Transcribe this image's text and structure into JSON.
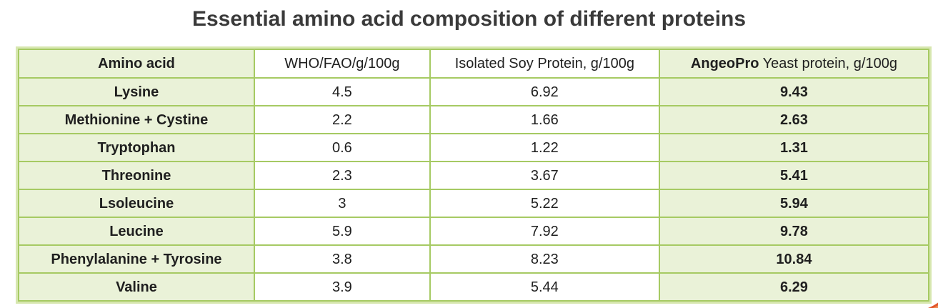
{
  "title": "Essential amino acid composition of different proteins",
  "table": {
    "headers": {
      "amino_acid": "Amino acid",
      "who_fao": "WHO/FAO/g/100g",
      "soy": "Isolated Soy Protein, g/100g",
      "angeopro_brand": "AngeoPro",
      "angeopro_rest": " Yeast protein, g/100g"
    },
    "rows": [
      {
        "cells": [
          "Lysine",
          "4.5",
          "6.92",
          "9.43"
        ]
      },
      {
        "cells": [
          "Methionine + Cystine",
          "2.2",
          "1.66",
          "2.63"
        ]
      },
      {
        "cells": [
          "Tryptophan",
          "0.6",
          "1.22",
          "1.31"
        ]
      },
      {
        "cells": [
          "Threonine",
          "2.3",
          "3.67",
          "5.41"
        ]
      },
      {
        "cells": [
          "Lsoleucine",
          "3",
          "5.22",
          "5.94"
        ]
      },
      {
        "cells": [
          "Leucine",
          "5.9",
          "7.92",
          "9.78"
        ]
      },
      {
        "cells": [
          "Phenylalanine + Tyrosine",
          "3.8",
          "8.23",
          "10.84"
        ]
      },
      {
        "cells": [
          "Valine",
          "3.9",
          "5.44",
          "6.29"
        ]
      }
    ]
  },
  "colors": {
    "cell_green": "#eaf2d8",
    "border_green": "#a6ca63",
    "outer_halo_green": "#d7e7b0",
    "title_text": "#3a3a3a",
    "cell_text": "#1f1f1f",
    "swoosh_orange": "#e2572b",
    "swoosh_orange_light": "#ef8d55"
  },
  "chart_data": {
    "type": "table",
    "title": "Essential amino acid composition of different proteins",
    "categories": [
      "Lysine",
      "Methionine + Cystine",
      "Tryptophan",
      "Threonine",
      "Lsoleucine",
      "Leucine",
      "Phenylalanine + Tyrosine",
      "Valine"
    ],
    "series": [
      {
        "name": "WHO/FAO/g/100g",
        "values": [
          4.5,
          2.2,
          0.6,
          2.3,
          3,
          5.9,
          3.8,
          3.9
        ]
      },
      {
        "name": "Isolated Soy Protein, g/100g",
        "values": [
          6.92,
          1.66,
          1.22,
          3.67,
          5.22,
          7.92,
          8.23,
          5.44
        ]
      },
      {
        "name": "AngeoPro Yeast protein, g/100g",
        "values": [
          9.43,
          2.63,
          1.31,
          5.41,
          5.94,
          9.78,
          10.84,
          6.29
        ]
      }
    ]
  }
}
